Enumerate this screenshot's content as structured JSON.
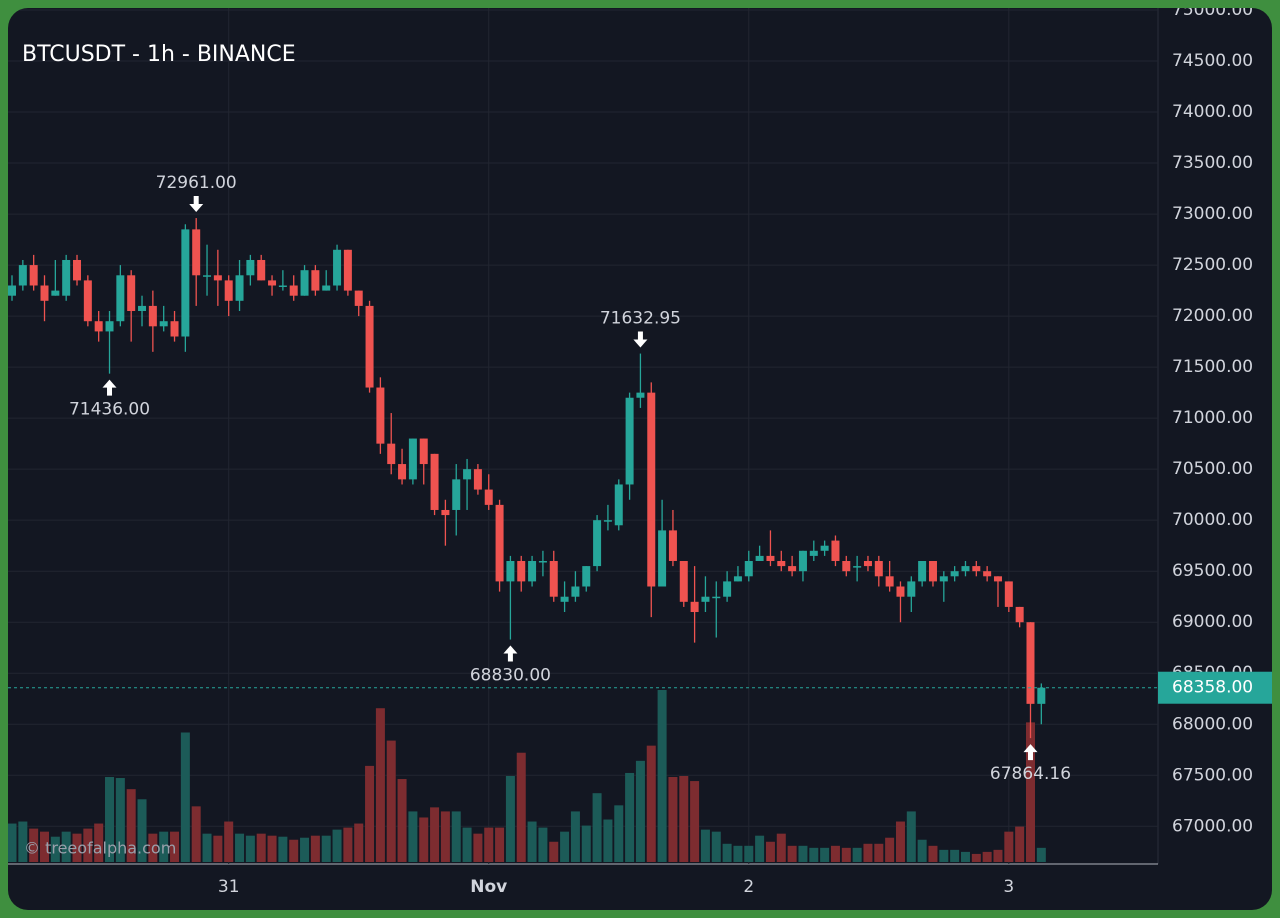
{
  "chart_data": {
    "type": "candlestick",
    "title": "BTCUSDT - 1h - BINANCE",
    "watermark": "© treeofalpha.com",
    "categories": [
      null,
      null,
      null,
      null,
      null,
      null,
      null,
      null,
      null,
      null,
      null,
      null,
      null,
      null,
      null,
      null,
      null,
      null,
      null,
      null,
      "31",
      null,
      null,
      null,
      null,
      null,
      null,
      null,
      null,
      null,
      null,
      null,
      null,
      null,
      null,
      null,
      null,
      null,
      null,
      null,
      null,
      null,
      null,
      null,
      "Nov",
      null,
      null,
      null,
      null,
      null,
      null,
      null,
      null,
      null,
      null,
      null,
      null,
      null,
      null,
      null,
      null,
      null,
      null,
      null,
      null,
      null,
      null,
      null,
      "2",
      null,
      null,
      null,
      null,
      null,
      null,
      null,
      null,
      null,
      null,
      null,
      null,
      null,
      null,
      null,
      null,
      null,
      null,
      null,
      null,
      null,
      null,
      null,
      "3",
      null,
      null,
      null
    ],
    "open": [
      72200,
      72300,
      72500,
      72300,
      72200,
      72200,
      72550,
      72350,
      71950,
      71850,
      71950,
      72400,
      72050,
      72100,
      71900,
      71950,
      71800,
      72850,
      72400,
      72400,
      72350,
      72150,
      72400,
      72550,
      72350,
      72300,
      72300,
      72200,
      72450,
      72250,
      72300,
      72650,
      72250,
      72100,
      71300,
      70750,
      70550,
      70400,
      70800,
      70650,
      70100,
      70100,
      70400,
      70500,
      70300,
      70150,
      69400,
      69600,
      69400,
      69600,
      69600,
      69200,
      69250,
      69350,
      69550,
      70000,
      69950,
      70350,
      71200,
      71250,
      69350,
      69900,
      69600,
      69200,
      69200,
      69250,
      69250,
      69400,
      69450,
      69600,
      69650,
      69600,
      69550,
      69500,
      69650,
      69700,
      69800,
      69600,
      69550,
      69600,
      69600,
      69450,
      69350,
      69250,
      69400,
      69600,
      69400,
      69450,
      69500,
      69550,
      69500,
      69450,
      69400,
      69150,
      69000,
      68200
    ],
    "high": [
      72400,
      72550,
      72600,
      72400,
      72550,
      72600,
      72600,
      72400,
      72050,
      72050,
      72500,
      72450,
      72200,
      72250,
      72100,
      72050,
      72900,
      72961,
      72700,
      72650,
      72400,
      72550,
      72600,
      72600,
      72400,
      72450,
      72400,
      72500,
      72500,
      72450,
      72700,
      72650,
      72250,
      72150,
      71400,
      71050,
      70700,
      70800,
      70800,
      70650,
      70200,
      70550,
      70600,
      70550,
      70450,
      70200,
      69650,
      69650,
      69650,
      69700,
      69700,
      69400,
      69500,
      69550,
      70050,
      70150,
      70400,
      71250,
      71632.95,
      71350,
      70200,
      70100,
      69600,
      69550,
      69450,
      69400,
      69500,
      69550,
      69700,
      69750,
      69900,
      69700,
      69650,
      69700,
      69800,
      69800,
      69850,
      69650,
      69650,
      69650,
      69650,
      69600,
      69400,
      69450,
      69600,
      69600,
      69500,
      69550,
      69600,
      69600,
      69550,
      69450,
      69400,
      69150,
      69000,
      68400
    ],
    "low": [
      72150,
      72250,
      72250,
      71950,
      72200,
      72150,
      72300,
      71900,
      71750,
      71436,
      71900,
      71750,
      71900,
      71650,
      71850,
      71750,
      71650,
      72100,
      72200,
      72100,
      72000,
      72050,
      72300,
      72350,
      72200,
      72250,
      72150,
      72200,
      72200,
      72250,
      72250,
      72200,
      72000,
      71250,
      70650,
      70450,
      70350,
      70350,
      70350,
      70050,
      69750,
      69850,
      70100,
      70250,
      70100,
      69300,
      68830,
      69300,
      69350,
      69450,
      69200,
      69100,
      69200,
      69300,
      69500,
      69900,
      69900,
      70200,
      71100,
      69050,
      69350,
      69550,
      69150,
      68800,
      69100,
      68850,
      69200,
      69400,
      69400,
      69600,
      69550,
      69500,
      69450,
      69400,
      69600,
      69650,
      69550,
      69450,
      69400,
      69500,
      69350,
      69300,
      69000,
      69100,
      69350,
      69350,
      69200,
      69400,
      69450,
      69450,
      69400,
      69150,
      69100,
      68950,
      67864.16,
      68000
    ],
    "close": [
      72300,
      72500,
      72300,
      72150,
      72250,
      72550,
      72350,
      71950,
      71850,
      71950,
      72400,
      72050,
      72100,
      71900,
      71950,
      71800,
      72850,
      72400,
      72400,
      72350,
      72150,
      72400,
      72550,
      72350,
      72300,
      72300,
      72200,
      72450,
      72250,
      72300,
      72650,
      72250,
      72100,
      71300,
      70750,
      70550,
      70400,
      70800,
      70550,
      70100,
      70050,
      70400,
      70500,
      70300,
      70150,
      69400,
      69600,
      69400,
      69600,
      69600,
      69250,
      69250,
      69350,
      69550,
      70000,
      70000,
      70350,
      71200,
      71250,
      69350,
      69900,
      69600,
      69200,
      69100,
      69250,
      69250,
      69400,
      69450,
      69600,
      69650,
      69600,
      69550,
      69500,
      69700,
      69700,
      69750,
      69600,
      69500,
      69550,
      69550,
      69450,
      69350,
      69250,
      69400,
      69600,
      69400,
      69450,
      69500,
      69550,
      69500,
      69450,
      69400,
      69150,
      69000,
      68200,
      68358
    ],
    "volume": [
      38,
      40,
      33,
      30,
      25,
      30,
      28,
      33,
      38,
      84,
      83,
      72,
      62,
      28,
      30,
      30,
      128,
      55,
      28,
      26,
      40,
      28,
      26,
      28,
      26,
      25,
      22,
      24,
      26,
      26,
      32,
      34,
      38,
      95,
      152,
      120,
      82,
      50,
      44,
      54,
      50,
      50,
      34,
      28,
      34,
      34,
      85,
      108,
      40,
      34,
      20,
      30,
      50,
      36,
      68,
      42,
      56,
      88,
      100,
      115,
      170,
      84,
      85,
      80,
      32,
      30,
      18,
      16,
      16,
      26,
      20,
      28,
      16,
      16,
      14,
      14,
      16,
      14,
      14,
      18,
      18,
      24,
      40,
      50,
      22,
      16,
      12,
      12,
      10,
      8,
      10,
      12,
      30,
      35,
      138,
      14
    ],
    "up_color": "#26a69a",
    "down_color": "#ef5350",
    "up_volume_color": "#1c5b58",
    "down_volume_color": "#7d2c30",
    "ylim": [
      66650,
      75000
    ],
    "yticks": [
      {
        "value": 67000,
        "label": "67000.00"
      },
      {
        "value": 67500,
        "label": "67500.00"
      },
      {
        "value": 68000,
        "label": "68000.00"
      },
      {
        "value": 68500,
        "label": "68500.00"
      },
      {
        "value": 69000,
        "label": "69000.00"
      },
      {
        "value": 69500,
        "label": "69500.00"
      },
      {
        "value": 70000,
        "label": "70000.00"
      },
      {
        "value": 70500,
        "label": "70500.00"
      },
      {
        "value": 71000,
        "label": "71000.00"
      },
      {
        "value": 71500,
        "label": "71500.00"
      },
      {
        "value": 72000,
        "label": "72000.00"
      },
      {
        "value": 72500,
        "label": "72500.00"
      },
      {
        "value": 73000,
        "label": "73000.00"
      },
      {
        "value": 73500,
        "label": "73500.00"
      },
      {
        "value": 74000,
        "label": "74000.00"
      },
      {
        "value": 74500,
        "label": "74500.00"
      },
      {
        "value": 75000,
        "label": "75000.00"
      }
    ],
    "annotations": [
      "72961.00",
      "71436.00",
      "68830.00",
      "71632.95",
      "67864.16"
    ],
    "last_price": {
      "value": 68358,
      "label": "68358.00"
    },
    "grid": true
  }
}
